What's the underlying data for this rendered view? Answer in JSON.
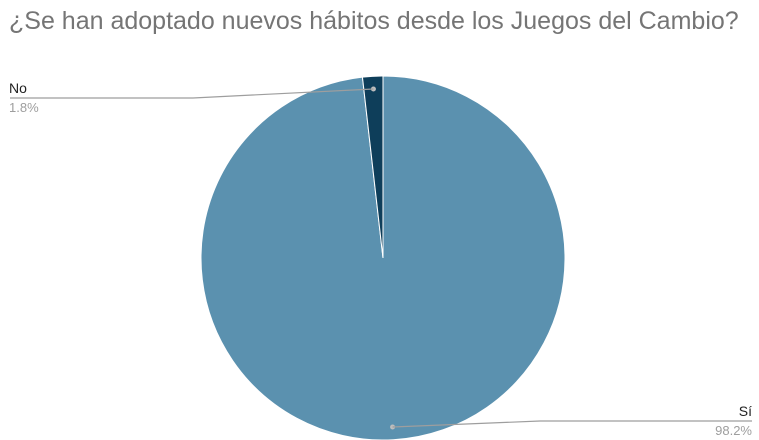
{
  "chart_data": {
    "type": "pie",
    "title": "¿Se han adoptado nuevos hábitos desde los Juegos del Cambio?",
    "slices": [
      {
        "label": "Sí",
        "value": 98.2,
        "display": "98.2%",
        "color": "#5b91af"
      },
      {
        "label": "No",
        "value": 1.8,
        "display": "1.8%",
        "color": "#0e3e5a"
      }
    ],
    "start_angle_deg": 0,
    "direction": "clockwise",
    "legend": "none"
  }
}
